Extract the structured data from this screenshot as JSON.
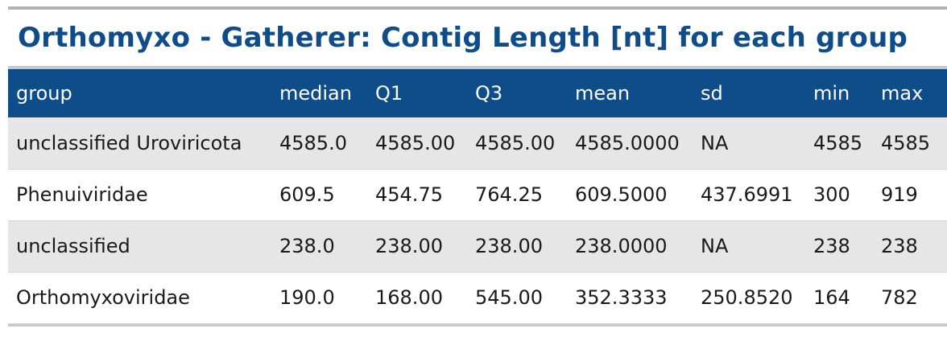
{
  "title": "Orthomyxo - Gatherer: Contig Length [nt] for each group",
  "colors": {
    "title": "#0f4c8a",
    "header_bg": "#0f4c8a",
    "header_text": "#ffffff",
    "stripe": "#e6e6e6"
  },
  "table": {
    "columns": [
      "group",
      "median",
      "Q1",
      "Q3",
      "mean",
      "sd",
      "min",
      "max"
    ],
    "rows": [
      [
        "unclassified Uroviricota",
        "4585.0",
        "4585.00",
        "4585.00",
        "4585.0000",
        "NA",
        "4585",
        "4585"
      ],
      [
        "Phenuiviridae",
        "609.5",
        "454.75",
        "764.25",
        "609.5000",
        "437.6991",
        "300",
        "919"
      ],
      [
        "unclassified",
        "238.0",
        "238.00",
        "238.00",
        "238.0000",
        "NA",
        "238",
        "238"
      ],
      [
        "Orthomyxoviridae",
        "190.0",
        "168.00",
        "545.00",
        "352.3333",
        "250.8520",
        "164",
        "782"
      ]
    ]
  }
}
